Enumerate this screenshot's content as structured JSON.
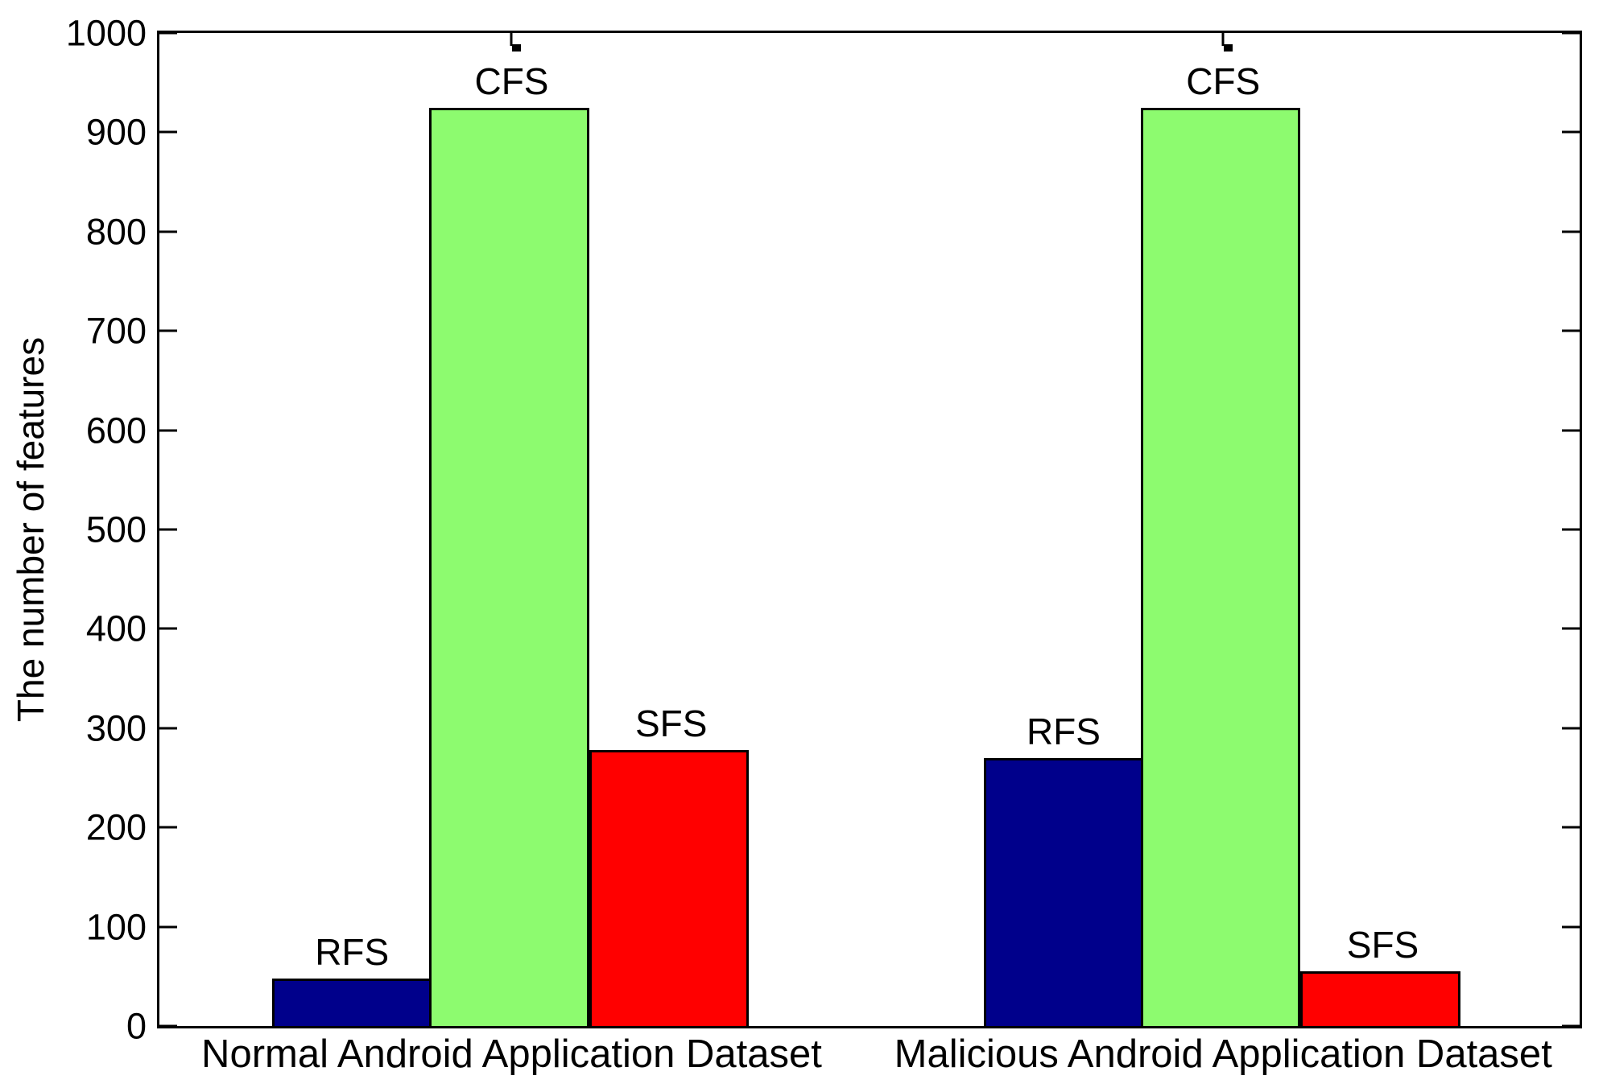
{
  "figure": {
    "background": "#FFFFFF",
    "axis_color": "#000000"
  },
  "chart_data": {
    "type": "bar",
    "title": "",
    "xlabel": "",
    "ylabel": "The number of features",
    "ylim": [
      0,
      1000
    ],
    "ytick_interval": 100,
    "grid": false,
    "legend_position": "none",
    "bar_labels_above_bars": true,
    "categories": [
      "Normal Android Application Dataset",
      "Malicious Android Application Dataset"
    ],
    "series": [
      {
        "name": "RFS",
        "color": "#00008B",
        "values": [
          48,
          270
        ]
      },
      {
        "name": "CFS",
        "color": "#8DFB6F",
        "values": [
          925,
          925
        ]
      },
      {
        "name": "SFS",
        "color": "#FF0000",
        "values": [
          278,
          55
        ]
      }
    ]
  }
}
